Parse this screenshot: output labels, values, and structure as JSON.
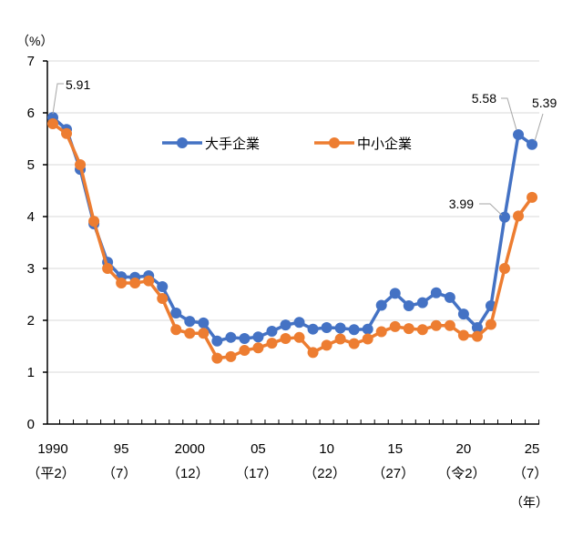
{
  "chart_data": {
    "type": "line",
    "title": "",
    "ylabel": "（%）",
    "xlabel": "（年）",
    "ylim": [
      0,
      7
    ],
    "yticks": [
      0,
      1,
      2,
      3,
      4,
      5,
      6,
      7
    ],
    "grid": true,
    "legend_position": "top-center",
    "x": [
      1990,
      1991,
      1992,
      1993,
      1994,
      1995,
      1996,
      1997,
      1998,
      1999,
      2000,
      2001,
      2002,
      2003,
      2004,
      2005,
      2006,
      2007,
      2008,
      2009,
      2010,
      2011,
      2012,
      2013,
      2014,
      2015,
      2016,
      2017,
      2018,
      2019,
      2020,
      2021,
      2022,
      2023,
      2024,
      2025
    ],
    "xtick_labels": [
      {
        "year": 1990,
        "label": "1990",
        "sub": "（平2）"
      },
      {
        "year": 1995,
        "label": "95",
        "sub": "（7）"
      },
      {
        "year": 2000,
        "label": "2000",
        "sub": "（12）"
      },
      {
        "year": 2005,
        "label": "05",
        "sub": "（17）"
      },
      {
        "year": 2010,
        "label": "10",
        "sub": "（22）"
      },
      {
        "year": 2015,
        "label": "15",
        "sub": "（27）"
      },
      {
        "year": 2020,
        "label": "20",
        "sub": "（令2）"
      },
      {
        "year": 2025,
        "label": "25",
        "sub": "（7）"
      }
    ],
    "series": [
      {
        "name": "大手企業",
        "color": "#4472C4",
        "values": [
          5.91,
          5.68,
          4.91,
          3.86,
          3.12,
          2.84,
          2.83,
          2.86,
          2.65,
          2.14,
          1.98,
          1.95,
          1.6,
          1.67,
          1.65,
          1.68,
          1.79,
          1.91,
          1.96,
          1.83,
          1.86,
          1.85,
          1.82,
          1.83,
          2.29,
          2.52,
          2.28,
          2.34,
          2.53,
          2.44,
          2.12,
          1.86,
          2.28,
          3.99,
          5.58,
          5.39
        ]
      },
      {
        "name": "中小企業",
        "color": "#ED7D31",
        "values": [
          5.79,
          5.6,
          5.0,
          3.91,
          3.0,
          2.72,
          2.72,
          2.76,
          2.42,
          1.82,
          1.75,
          1.75,
          1.27,
          1.3,
          1.42,
          1.47,
          1.56,
          1.65,
          1.67,
          1.38,
          1.52,
          1.64,
          1.55,
          1.64,
          1.78,
          1.88,
          1.84,
          1.82,
          1.9,
          1.9,
          1.71,
          1.69,
          1.92,
          3.0,
          4.01,
          4.37
        ]
      }
    ],
    "annotations": [
      {
        "series": 0,
        "year": 1990,
        "text": "5.91"
      },
      {
        "series": 0,
        "year": 2023,
        "text": "3.99"
      },
      {
        "series": 0,
        "year": 2024,
        "text": "5.58"
      },
      {
        "series": 0,
        "year": 2025,
        "text": "5.39"
      }
    ]
  }
}
